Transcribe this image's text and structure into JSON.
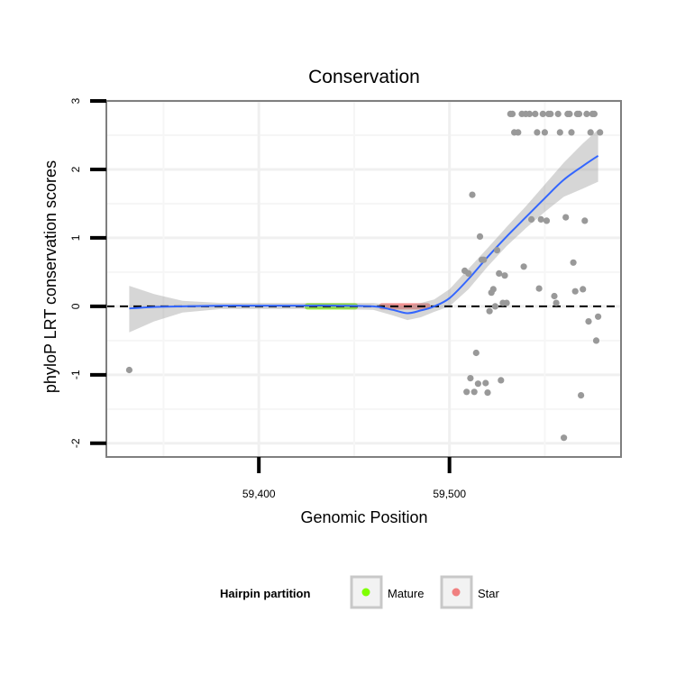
{
  "chart_data": {
    "type": "scatter",
    "title": "Conservation",
    "xlabel": "Genomic Position",
    "ylabel": "phyloP LRT conservation scores",
    "xlim": [
      59320,
      59590
    ],
    "ylim": [
      -2.2,
      3.0
    ],
    "x_ticks": [
      59400,
      59500
    ],
    "x_tick_labels": [
      "59,400",
      "59,500"
    ],
    "y_ticks": [
      -2,
      -1,
      0,
      1,
      2,
      3
    ],
    "y_tick_labels": [
      "-2",
      "-1",
      "0",
      "1",
      "2",
      "3"
    ],
    "grid": true,
    "reference_line_y": 0,
    "legend": {
      "title": "Hairpin partition",
      "position": "bottom",
      "entries": [
        {
          "label": "Mature",
          "color": "#7fff00"
        },
        {
          "label": "Star",
          "color": "#f08080"
        }
      ]
    },
    "points": {
      "name": "phyloP scores",
      "color": "#999999",
      "x": [
        59332,
        59508,
        59510,
        59512,
        59514,
        59516,
        59518,
        59519,
        59521,
        59523,
        59525,
        59527,
        59530,
        59532,
        59534,
        59538,
        59540,
        59542,
        59546,
        59548,
        59549,
        59551,
        59553,
        59555,
        59557,
        59558,
        59561,
        59563,
        59565,
        59568,
        59570,
        59572,
        59574,
        59576,
        59578,
        59509,
        59511,
        59513,
        59515,
        59517,
        59520,
        59522,
        59524,
        59526,
        59528,
        59529,
        59533,
        59536,
        59539,
        59543,
        59545,
        59547,
        59550,
        59552,
        59556,
        59560,
        59562,
        59564,
        59566,
        59567,
        59569,
        59571,
        59573,
        59575,
        59577,
        59579
      ],
      "y": [
        -0.93,
        0.52,
        0.48,
        1.63,
        -0.68,
        1.02,
        0.68,
        -1.12,
        -0.07,
        0.25,
        0.82,
        -1.08,
        0.05,
        2.81,
        2.54,
        2.81,
        2.81,
        2.81,
        2.54,
        1.27,
        2.81,
        1.25,
        2.81,
        0.15,
        2.81,
        2.54,
        1.3,
        2.81,
        0.64,
        2.81,
        0.25,
        2.81,
        2.54,
        2.81,
        -0.15,
        -1.25,
        -1.05,
        -1.25,
        -1.13,
        0.68,
        -1.26,
        0.2,
        0.0,
        0.48,
        0.05,
        0.45,
        2.81,
        2.54,
        0.58,
        1.27,
        2.81,
        0.26,
        2.54,
        2.81,
        0.05,
        -1.92,
        2.81,
        2.54,
        0.22,
        2.81,
        -1.3,
        1.25,
        -0.22,
        2.81,
        -0.5,
        2.54
      ]
    },
    "smooth": {
      "name": "loess fit",
      "color": "#3366ff",
      "x": [
        59332,
        59345,
        59360,
        59380,
        59400,
        59420,
        59440,
        59460,
        59470,
        59478,
        59485,
        59492,
        59500,
        59510,
        59520,
        59530,
        59540,
        59550,
        59560,
        59570,
        59578
      ],
      "y": [
        -0.03,
        -0.01,
        0.0,
        0.01,
        0.01,
        0.01,
        0.01,
        0.0,
        -0.05,
        -0.1,
        -0.06,
        0.0,
        0.12,
        0.4,
        0.72,
        1.02,
        1.3,
        1.58,
        1.85,
        2.05,
        2.2
      ],
      "ci_upper": [
        0.3,
        0.18,
        0.08,
        0.05,
        0.05,
        0.05,
        0.05,
        0.05,
        0.02,
        0.0,
        0.05,
        0.1,
        0.25,
        0.55,
        0.85,
        1.16,
        1.46,
        1.78,
        2.1,
        2.38,
        2.58
      ],
      "ci_lower": [
        -0.38,
        -0.22,
        -0.09,
        -0.04,
        -0.04,
        -0.04,
        -0.04,
        -0.05,
        -0.13,
        -0.2,
        -0.16,
        -0.08,
        0.0,
        0.25,
        0.58,
        0.88,
        1.14,
        1.38,
        1.6,
        1.72,
        1.82
      ]
    },
    "partitions": [
      {
        "name": "Mature",
        "color": "#7fff00",
        "x_start": 59424,
        "x_end": 59452
      },
      {
        "name": "Star",
        "color": "#f08080",
        "x_start": 59463,
        "x_end": 59490
      }
    ]
  }
}
